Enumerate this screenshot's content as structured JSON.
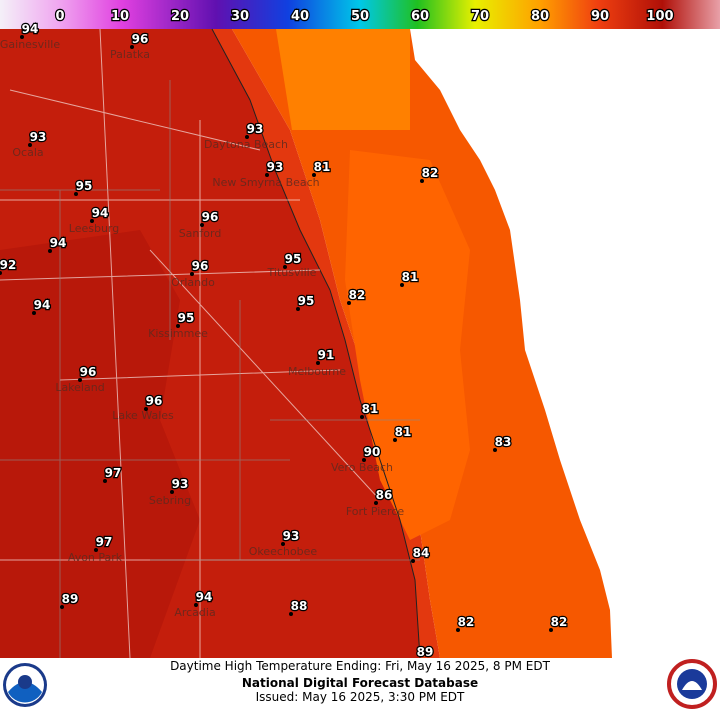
{
  "colorbar": {
    "ticks": [
      0,
      10,
      20,
      30,
      40,
      50,
      60,
      70,
      80,
      90,
      100
    ]
  },
  "temperatures": [
    94,
    96,
    93,
    93,
    93,
    81,
    82,
    95,
    94,
    96,
    94,
    92,
    96,
    95,
    81,
    82,
    95,
    94,
    95,
    91,
    96,
    81,
    81,
    96,
    83,
    90,
    97,
    93,
    86,
    93,
    97,
    84,
    89,
    94,
    88,
    82,
    82,
    89
  ],
  "cities": [
    "Gainesville",
    "Palatka",
    "Ocala",
    "Daytona Beach",
    "New Smyrna Beach",
    "Leesburg",
    "Sanford",
    "Titusville",
    "Orlando",
    "Kissimmee",
    "Melbourne",
    "Lakeland",
    "Lake Wales",
    "Vero Beach",
    "Sebring",
    "Fort Pierce",
    "Avon Park",
    "Okeechobee",
    "Arcadia"
  ],
  "footer": {
    "line1": "Daytime High Temperature Ending: Fri, May 16 2025, 8 PM EDT",
    "line2": "National Digital Forecast Database",
    "line3": "Issued: May 16 2025, 3:30 PM EDT"
  }
}
